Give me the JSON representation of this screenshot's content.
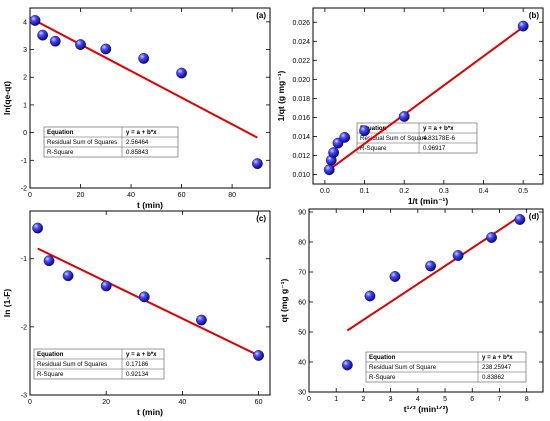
{
  "chart_data": [
    {
      "panel": "(a)",
      "type": "scatter",
      "xlabel": "t (min)",
      "ylabel": "ln(qe-qt)",
      "xlim": [
        0,
        95
      ],
      "ylim": [
        -2,
        4.5
      ],
      "xticks": [
        "0",
        "20",
        "40",
        "60",
        "80"
      ],
      "yticks": [
        "-2",
        "-1",
        "0",
        "1",
        "2",
        "3",
        "4"
      ],
      "points": [
        [
          2,
          4.05
        ],
        [
          5,
          3.52
        ],
        [
          10,
          3.3
        ],
        [
          20,
          3.18
        ],
        [
          30,
          3.02
        ],
        [
          45,
          2.68
        ],
        [
          60,
          2.15
        ],
        [
          90,
          -1.12
        ]
      ],
      "fit": [
        [
          2,
          4.05
        ],
        [
          90,
          -0.18
        ]
      ],
      "stats": {
        "header": [
          "Equation",
          "y = a + b*x"
        ],
        "rows": [
          [
            "Residual Sum of Squares",
            "2.56464"
          ],
          [
            "R-Square",
            "0.85843"
          ]
        ]
      }
    },
    {
      "panel": "(b)",
      "type": "scatter",
      "xlabel": "1/t (min⁻¹)",
      "ylabel": "1/qt (g mg⁻¹)",
      "xlim": [
        -0.03,
        0.55
      ],
      "ylim": [
        0.009,
        0.0275
      ],
      "xticks": [
        "0.0",
        "0.1",
        "0.2",
        "0.3",
        "0.4",
        "0.5"
      ],
      "yticks": [
        "0.010",
        "0.012",
        "0.014",
        "0.016",
        "0.018",
        "0.020",
        "0.022",
        "0.024",
        "0.026"
      ],
      "points": [
        [
          0.011,
          0.0105
        ],
        [
          0.016,
          0.0115
        ],
        [
          0.022,
          0.0123
        ],
        [
          0.033,
          0.0133
        ],
        [
          0.05,
          0.0139
        ],
        [
          0.1,
          0.0146
        ],
        [
          0.2,
          0.0161
        ],
        [
          0.5,
          0.0256
        ]
      ],
      "fit": [
        [
          0.011,
          0.0105
        ],
        [
          0.5,
          0.0255
        ]
      ],
      "stats": {
        "header": [
          "Equation",
          "y = a + b*x"
        ],
        "rows": [
          [
            "Residual Sum of Square",
            "4.83178E-6"
          ],
          [
            "R-Square",
            "0.96917"
          ]
        ]
      }
    },
    {
      "panel": "(c)",
      "type": "scatter",
      "xlabel": "t (min)",
      "ylabel": "ln (1-F)",
      "xlim": [
        0,
        63
      ],
      "ylim": [
        -3,
        -0.3
      ],
      "xticks": [
        "0",
        "20",
        "40",
        "60"
      ],
      "yticks": [
        "-1",
        "-2",
        "-3"
      ],
      "points": [
        [
          2,
          -0.55
        ],
        [
          5,
          -1.03
        ],
        [
          10,
          -1.25
        ],
        [
          20,
          -1.4
        ],
        [
          30,
          -1.56
        ],
        [
          45,
          -1.9
        ],
        [
          60,
          -2.42
        ]
      ],
      "fit": [
        [
          2,
          -0.85
        ],
        [
          60,
          -2.42
        ]
      ],
      "stats": {
        "header": [
          "Equation",
          "y = a + b*x"
        ],
        "rows": [
          [
            "Residual Sum of Squares",
            "0.17186"
          ],
          [
            "R-Square",
            "0.92134"
          ]
        ]
      }
    },
    {
      "panel": "(d)",
      "type": "scatter",
      "xlabel": "t¹ᐟ² (min¹ᐟ²)",
      "ylabel": "qt (mg g⁻¹)",
      "xlim": [
        0,
        8.6
      ],
      "ylim": [
        30,
        91
      ],
      "xticks": [
        "0",
        "1",
        "2",
        "3",
        "4",
        "5",
        "6",
        "7",
        "8"
      ],
      "yticks": [
        "30",
        "40",
        "50",
        "60",
        "70",
        "80",
        "90"
      ],
      "points": [
        [
          1.41,
          39
        ],
        [
          2.24,
          62
        ],
        [
          3.16,
          68.5
        ],
        [
          4.47,
          72
        ],
        [
          5.48,
          75.5
        ],
        [
          6.71,
          81.5
        ],
        [
          7.75,
          87.5
        ]
      ],
      "fit": [
        [
          1.41,
          50.5
        ],
        [
          7.75,
          88.5
        ]
      ],
      "stats": {
        "header": [
          "Equation",
          "y = a + b*x"
        ],
        "rows": [
          [
            "Residual Sum of Square",
            "238.25947"
          ],
          [
            "R-Square",
            "0.83862"
          ]
        ]
      }
    }
  ],
  "colors": {
    "marker": "#1616c8",
    "fit": "#e00000",
    "frame": "#000000"
  }
}
